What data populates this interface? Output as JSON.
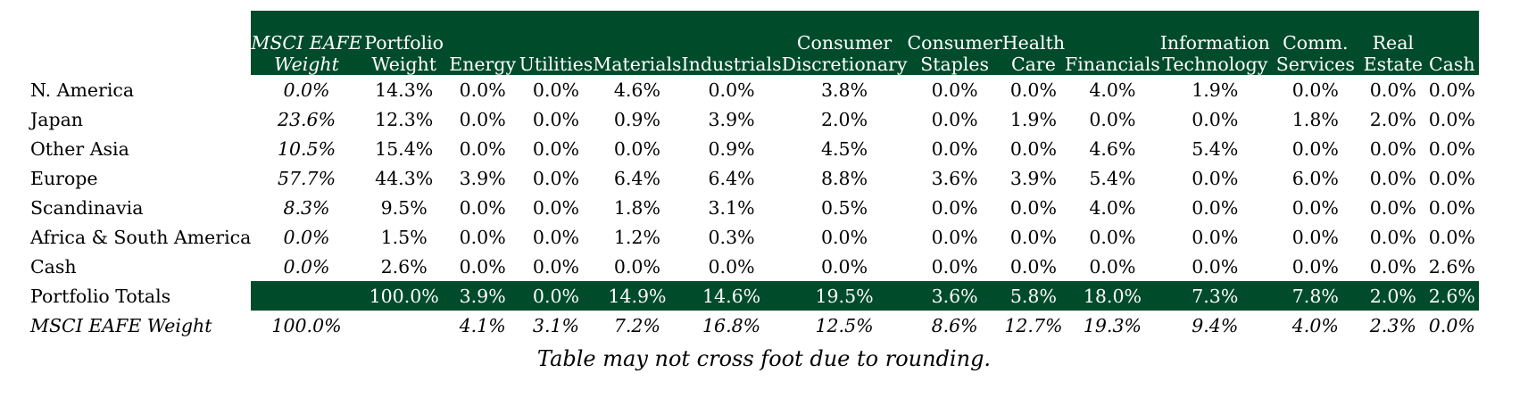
{
  "header_bg": "#004b2a",
  "columns": [
    {
      "lines": [
        "MSCI EAFE",
        "Weight"
      ],
      "italic": true
    },
    {
      "lines": [
        "Portfolio",
        "Weight"
      ]
    },
    {
      "lines": [
        "Energy"
      ]
    },
    {
      "lines": [
        "Utilities"
      ]
    },
    {
      "lines": [
        "Materials"
      ]
    },
    {
      "lines": [
        "Industrials"
      ]
    },
    {
      "lines": [
        "Consumer",
        "Discretionary"
      ]
    },
    {
      "lines": [
        "Consumer",
        "Staples"
      ]
    },
    {
      "lines": [
        "Health",
        "Care"
      ]
    },
    {
      "lines": [
        "Financials"
      ]
    },
    {
      "lines": [
        "Information",
        "Technology"
      ]
    },
    {
      "lines": [
        "Comm.",
        "Services"
      ]
    },
    {
      "lines": [
        "Real",
        "Estate"
      ]
    },
    {
      "lines": [
        "Cash"
      ]
    }
  ],
  "rows": [
    {
      "label": "N. America",
      "values": [
        "0.0%",
        "14.3%",
        "0.0%",
        "0.0%",
        "4.6%",
        "0.0%",
        "3.8%",
        "0.0%",
        "0.0%",
        "4.0%",
        "1.9%",
        "0.0%",
        "0.0%",
        "0.0%"
      ]
    },
    {
      "label": "Japan",
      "values": [
        "23.6%",
        "12.3%",
        "0.0%",
        "0.0%",
        "0.9%",
        "3.9%",
        "2.0%",
        "0.0%",
        "1.9%",
        "0.0%",
        "0.0%",
        "1.8%",
        "2.0%",
        "0.0%"
      ]
    },
    {
      "label": "Other Asia",
      "values": [
        "10.5%",
        "15.4%",
        "0.0%",
        "0.0%",
        "0.0%",
        "0.9%",
        "4.5%",
        "0.0%",
        "0.0%",
        "4.6%",
        "5.4%",
        "0.0%",
        "0.0%",
        "0.0%"
      ]
    },
    {
      "label": "Europe",
      "values": [
        "57.7%",
        "44.3%",
        "3.9%",
        "0.0%",
        "6.4%",
        "6.4%",
        "8.8%",
        "3.6%",
        "3.9%",
        "5.4%",
        "0.0%",
        "6.0%",
        "0.0%",
        "0.0%"
      ]
    },
    {
      "label": "Scandinavia",
      "values": [
        "8.3%",
        "9.5%",
        "0.0%",
        "0.0%",
        "1.8%",
        "3.1%",
        "0.5%",
        "0.0%",
        "0.0%",
        "4.0%",
        "0.0%",
        "0.0%",
        "0.0%",
        "0.0%"
      ]
    },
    {
      "label": "Africa & South America",
      "values": [
        "0.0%",
        "1.5%",
        "0.0%",
        "0.0%",
        "1.2%",
        "0.3%",
        "0.0%",
        "0.0%",
        "0.0%",
        "0.0%",
        "0.0%",
        "0.0%",
        "0.0%",
        "0.0%"
      ]
    },
    {
      "label": "Cash",
      "values": [
        "0.0%",
        "2.6%",
        "0.0%",
        "0.0%",
        "0.0%",
        "0.0%",
        "0.0%",
        "0.0%",
        "0.0%",
        "0.0%",
        "0.0%",
        "0.0%",
        "0.0%",
        "2.6%"
      ]
    }
  ],
  "totals": {
    "label": "Portfolio Totals",
    "values": [
      "",
      "100.0%",
      "3.9%",
      "0.0%",
      "14.9%",
      "14.6%",
      "19.5%",
      "3.6%",
      "5.8%",
      "18.0%",
      "7.3%",
      "7.8%",
      "2.0%",
      "2.6%"
    ]
  },
  "benchmark": {
    "label": "MSCI EAFE Weight",
    "values": [
      "100.0%",
      "",
      "4.1%",
      "3.1%",
      "7.2%",
      "16.8%",
      "12.5%",
      "8.6%",
      "12.7%",
      "19.3%",
      "9.4%",
      "4.0%",
      "2.3%",
      "0.0%"
    ]
  },
  "note": "Table may not cross foot due to rounding."
}
